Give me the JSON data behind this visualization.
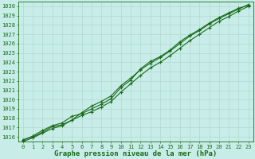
{
  "title": "Graphe pression niveau de la mer (hPa)",
  "hours": [
    0,
    1,
    2,
    3,
    4,
    5,
    6,
    7,
    8,
    9,
    10,
    11,
    12,
    13,
    14,
    15,
    16,
    17,
    18,
    19,
    20,
    21,
    22,
    23
  ],
  "line1": [
    1015.7,
    1016.0,
    1016.5,
    1017.1,
    1017.3,
    1017.8,
    1018.3,
    1018.7,
    1019.2,
    1019.8,
    1020.8,
    1021.7,
    1022.6,
    1023.4,
    1024.0,
    1024.7,
    1025.5,
    1026.3,
    1027.0,
    1027.7,
    1028.4,
    1028.9,
    1029.5,
    1030.0
  ],
  "line2": [
    1015.5,
    1015.9,
    1016.4,
    1016.9,
    1017.2,
    1017.8,
    1018.6,
    1019.3,
    1019.8,
    1020.4,
    1021.5,
    1022.3,
    1023.2,
    1023.9,
    1024.5,
    1025.2,
    1026.0,
    1026.8,
    1027.4,
    1028.1,
    1028.7,
    1029.2,
    1029.7,
    1030.2
  ],
  "line3": [
    1015.6,
    1016.1,
    1016.7,
    1017.2,
    1017.5,
    1018.2,
    1018.5,
    1019.0,
    1019.5,
    1020.1,
    1021.3,
    1022.1,
    1023.3,
    1024.1,
    1024.6,
    1025.3,
    1026.2,
    1026.9,
    1027.5,
    1028.2,
    1028.8,
    1029.3,
    1029.8,
    1030.1
  ],
  "line_color": "#1a6b1a",
  "bg_color": "#c8ede8",
  "grid_color": "#b0d8d0",
  "plot_bg": "#c8ede8",
  "ylim": [
    1015.5,
    1030.5
  ],
  "xlim": [
    -0.5,
    23.5
  ],
  "yticks": [
    1016,
    1017,
    1018,
    1019,
    1020,
    1021,
    1022,
    1023,
    1024,
    1025,
    1026,
    1027,
    1028,
    1029,
    1030
  ],
  "xticks": [
    0,
    1,
    2,
    3,
    4,
    5,
    6,
    7,
    8,
    9,
    10,
    11,
    12,
    13,
    14,
    15,
    16,
    17,
    18,
    19,
    20,
    21,
    22,
    23
  ],
  "title_fontsize": 6.5,
  "tick_fontsize": 5.0
}
